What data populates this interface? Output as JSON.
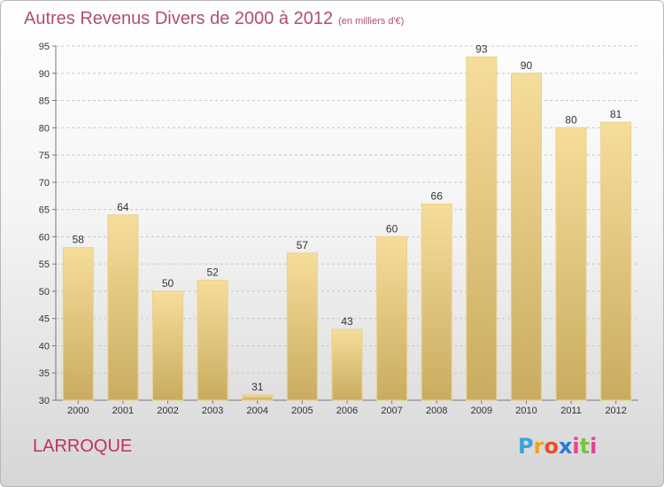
{
  "title": "Autres Revenus Divers de 2000 à 2012",
  "subtitle": "(en milliers d'€)",
  "town": "LARROQUE",
  "logo": {
    "letters": [
      "P",
      "r",
      "o",
      "x",
      "i",
      "t",
      "i"
    ],
    "colors": [
      "#3aa3e0",
      "#f0a020",
      "#e8502a",
      "#2b7bd8",
      "#e84090",
      "#7cc340",
      "#e84090"
    ]
  },
  "colors": {
    "bar_light": "#f6dd9a",
    "bar_dark": "#c9ac60",
    "title": "#b0506a",
    "town": "#c0325a"
  },
  "chart_data": {
    "type": "bar",
    "categories": [
      "2000",
      "2001",
      "2002",
      "2003",
      "2004",
      "2005",
      "2006",
      "2007",
      "2008",
      "2009",
      "2010",
      "2011",
      "2012"
    ],
    "values": [
      58,
      64,
      50,
      52,
      31,
      57,
      43,
      60,
      66,
      93,
      90,
      80,
      81
    ],
    "ylim": [
      30,
      95
    ],
    "yticks": [
      30,
      35,
      40,
      45,
      50,
      55,
      60,
      65,
      70,
      75,
      80,
      85,
      90,
      95
    ],
    "grid": true,
    "xlabel": "",
    "ylabel": ""
  }
}
